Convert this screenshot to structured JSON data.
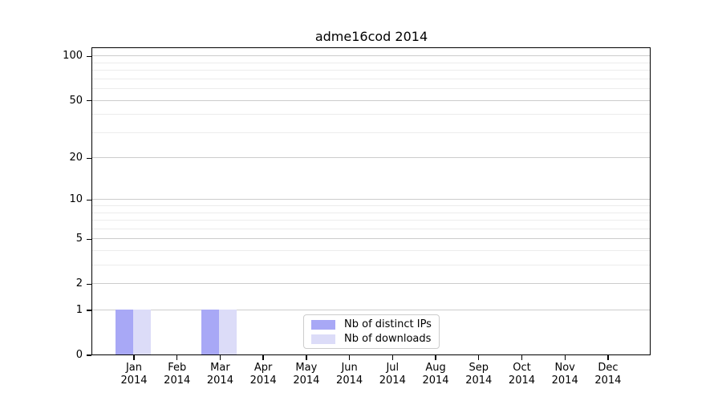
{
  "chart_data": {
    "type": "bar",
    "title": "adme16cod 2014",
    "categories": [
      "Jan 2014",
      "Feb 2014",
      "Mar 2014",
      "Apr 2014",
      "May 2014",
      "Jun 2014",
      "Jul 2014",
      "Aug 2014",
      "Sep 2014",
      "Oct 2014",
      "Nov 2014",
      "Dec 2014"
    ],
    "series": [
      {
        "name": "Nb of distinct IPs",
        "color": "#a8a8f6",
        "values": [
          1,
          0,
          1,
          0,
          0,
          0,
          0,
          0,
          0,
          0,
          0,
          0
        ]
      },
      {
        "name": "Nb of downloads",
        "color": "#dcdcf8",
        "values": [
          1,
          0,
          1,
          0,
          0,
          0,
          0,
          0,
          0,
          0,
          0,
          0
        ]
      }
    ],
    "xlabel": "",
    "ylabel": "",
    "yticks": [
      0,
      1,
      2,
      5,
      10,
      20,
      50,
      100
    ],
    "scale": "log(1+x)",
    "ylim": [
      0,
      113
    ],
    "grid": true,
    "legend_position": "lower center"
  },
  "colors": {
    "major_grid": "#cccccc",
    "minor_grid": "#ececec",
    "axis": "#000000",
    "background": "#ffffff"
  }
}
